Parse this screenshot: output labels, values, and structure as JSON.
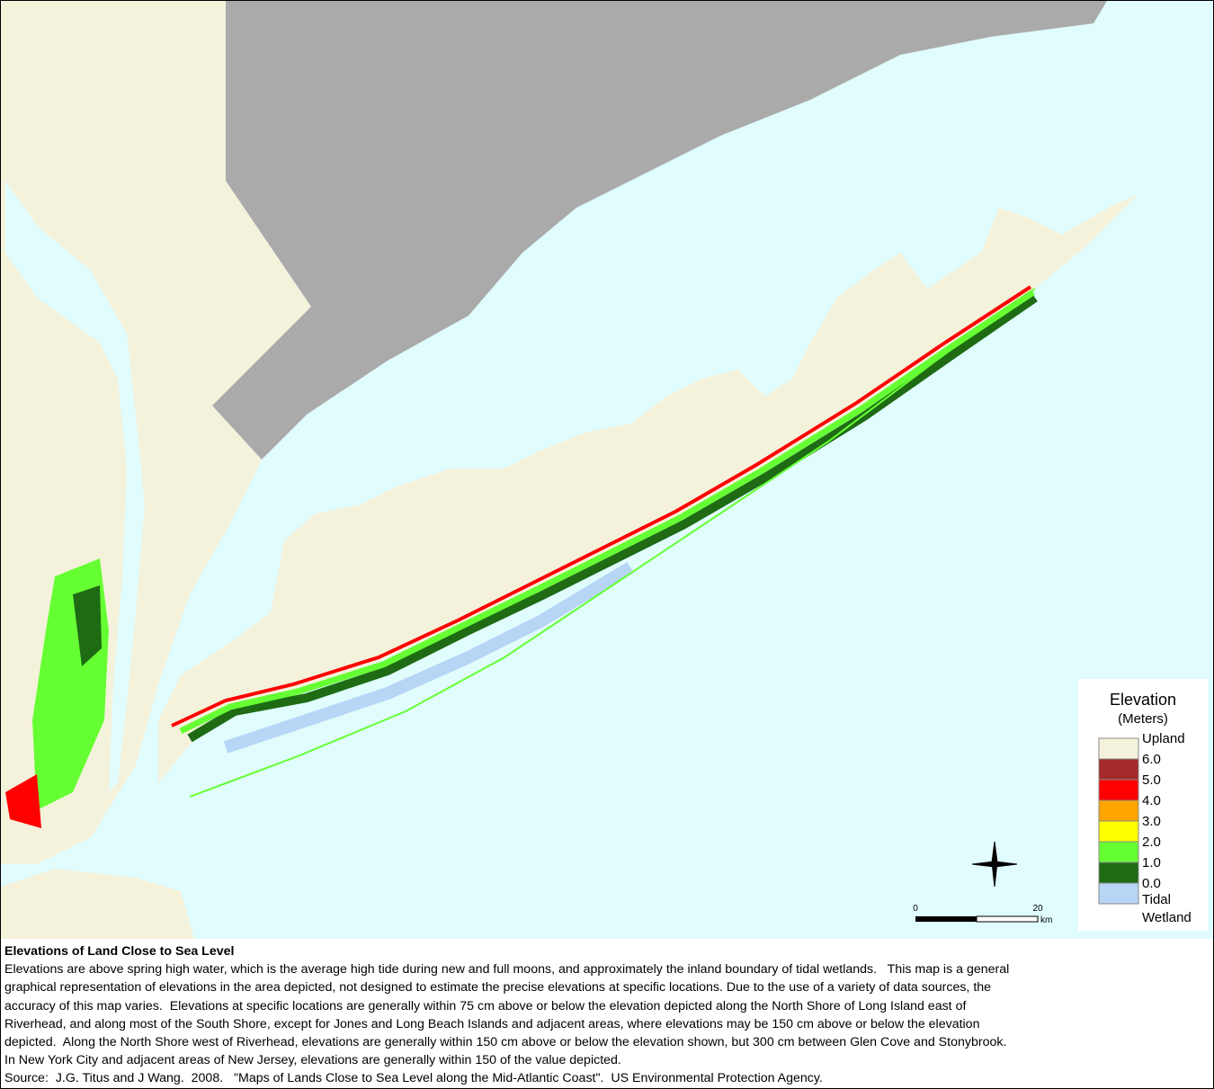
{
  "legend": {
    "title": "Elevation",
    "subtitle": "(Meters)",
    "swatches": [
      "#f5f2dc",
      "#a52a2a",
      "#ff0000",
      "#ffa500",
      "#ffff00",
      "#66ff33",
      "#1e6b14",
      "#b7d5f5"
    ],
    "labels": [
      "Upland",
      "6.0",
      "5.0",
      "4.0",
      "3.0",
      "2.0",
      "1.0",
      "0.0",
      "Tidal",
      "Wetland"
    ]
  },
  "scale_bar": {
    "start": "0",
    "end": "20",
    "unit": "km"
  },
  "caption": {
    "title": "Elevations of Land Close to Sea Level",
    "lines": [
      "Elevations are above spring high water, which is the average high tide during new and full moons, and approximately the inland boundary of tidal wetlands.   This map is a general",
      "graphical representation of elevations in the area depicted, not designed to estimate the precise elevations at specific locations. Due to the use of a variety of data sources, the",
      "accuracy of this map varies.  Elevations at specific locations are generally within 75 cm above or below the elevation depicted along the North Shore of Long Island east of",
      "Riverhead, and along most of the South Shore, except for Jones and Long Beach Islands and adjacent areas, where elevations may be 150 cm above or below the elevation",
      "depicted.  Along the North Shore west of Riverhead, elevations are generally within 150 cm above or below the elevation shown, but 300 cm between Glen Cove and Stonybrook.",
      "In New York City and adjacent areas of New Jersey, elevations are generally within 150 of the value depicted."
    ],
    "source": "Source:  J.G. Titus and J Wang.  2008.   \"Maps of Lands Close to Sea Level along the Mid-Atlantic Coast\".  US Environmental Protection Agency."
  }
}
